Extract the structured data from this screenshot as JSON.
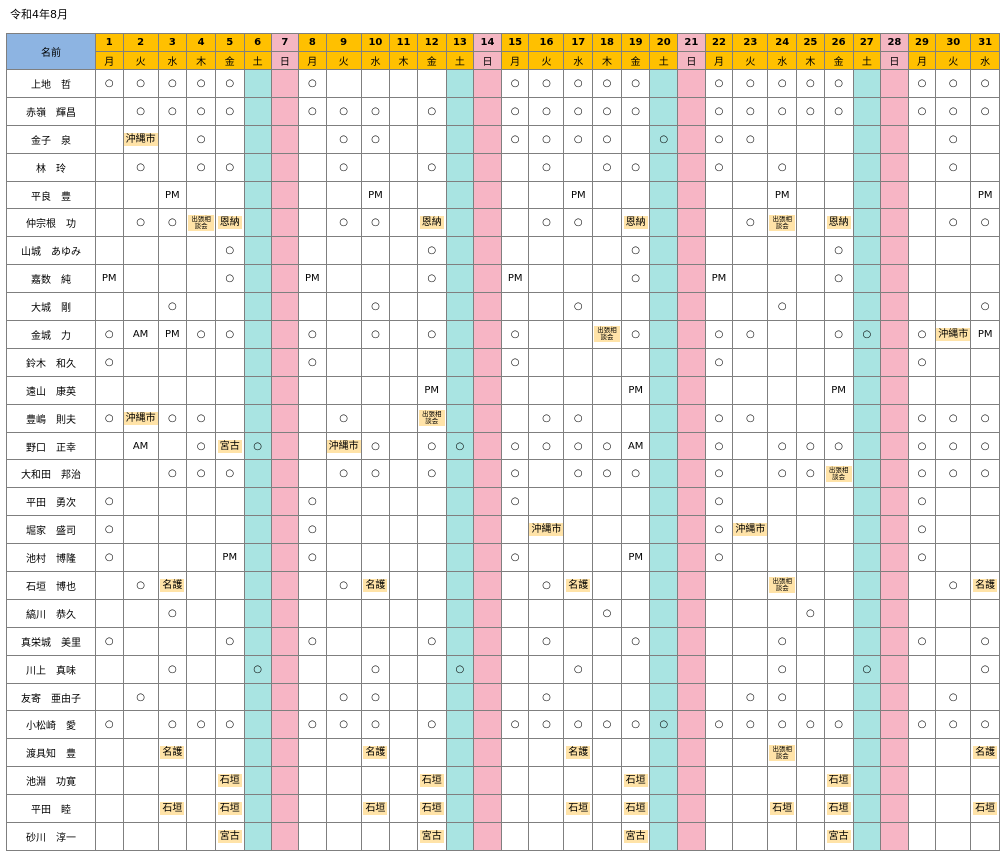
{
  "caption": "令和4年8月",
  "header": {
    "name_label": "名前",
    "days": [
      "1",
      "2",
      "3",
      "4",
      "5",
      "6",
      "7",
      "8",
      "9",
      "10",
      "11",
      "12",
      "13",
      "14",
      "15",
      "16",
      "17",
      "18",
      "19",
      "20",
      "21",
      "22",
      "23",
      "24",
      "25",
      "26",
      "27",
      "28",
      "29",
      "30",
      "31"
    ],
    "weekdays": [
      "月",
      "火",
      "水",
      "木",
      "金",
      "土",
      "日",
      "月",
      "火",
      "水",
      "木",
      "金",
      "土",
      "日",
      "月",
      "火",
      "水",
      "木",
      "金",
      "土",
      "日",
      "月",
      "火",
      "水",
      "木",
      "金",
      "土",
      "日",
      "月",
      "火",
      "水"
    ]
  },
  "rows": [
    {
      "name": "上地　哲",
      "cells": [
        "○",
        "○",
        "○",
        "○",
        "○",
        "",
        "",
        "○",
        "",
        "",
        "",
        "",
        "",
        "",
        "○",
        "○",
        "○",
        "○",
        "○",
        "",
        "",
        "○",
        "○",
        "○",
        "○",
        "○",
        "",
        "",
        "○",
        "○",
        "○"
      ]
    },
    {
      "name": "赤嶺　輝昌",
      "cells": [
        "",
        "○",
        "○",
        "○",
        "○",
        "",
        "",
        "○",
        "○",
        "○",
        "",
        "○",
        "",
        "",
        "○",
        "○",
        "○",
        "○",
        "○",
        "",
        "",
        "○",
        "○",
        "○",
        "○",
        "○",
        "",
        "",
        "○",
        "○",
        "○"
      ]
    },
    {
      "name": "金子　泉",
      "cells": [
        "",
        "沖縄市",
        "",
        "○",
        "",
        "",
        "",
        "",
        "○",
        "○",
        "",
        "",
        "",
        "",
        "○",
        "○",
        "○",
        "○",
        "",
        "○",
        "",
        "○",
        "○",
        "",
        "",
        "",
        "",
        "",
        "",
        "○",
        ""
      ]
    },
    {
      "name": "林　玲",
      "cells": [
        "",
        "○",
        "",
        "○",
        "○",
        "",
        "",
        "",
        "○",
        "",
        "",
        "○",
        "",
        "",
        "",
        "○",
        "",
        "○",
        "○",
        "",
        "",
        "○",
        "",
        "○",
        "",
        "",
        "",
        "",
        "",
        "○",
        ""
      ]
    },
    {
      "name": "平良　豊",
      "cells": [
        "",
        "",
        "PM",
        "",
        "",
        "",
        "",
        "",
        "",
        "PM",
        "",
        "",
        "",
        "",
        "",
        "",
        "PM",
        "",
        "",
        "",
        "",
        "",
        "",
        "PM",
        "",
        "",
        "",
        "",
        "",
        "",
        "PM"
      ]
    },
    {
      "name": "仲宗根　功",
      "cells": [
        "",
        "○",
        "○",
        "出張相談会",
        "恩納",
        "",
        "",
        "",
        "○",
        "○",
        "",
        "恩納",
        "",
        "",
        "",
        "○",
        "○",
        "",
        "恩納",
        "",
        "",
        "",
        "○",
        "出張相談会",
        "",
        "恩納",
        "",
        "",
        "",
        "○",
        "○"
      ]
    },
    {
      "name": "山城　あゆみ",
      "cells": [
        "",
        "",
        "",
        "",
        "○",
        "",
        "",
        "",
        "",
        "",
        "",
        "○",
        "",
        "",
        "",
        "",
        "",
        "",
        "○",
        "",
        "",
        "",
        "",
        "",
        "",
        "○",
        "",
        "",
        "",
        "",
        ""
      ]
    },
    {
      "name": "嘉数　純",
      "cells": [
        "PM",
        "",
        "",
        "",
        "○",
        "",
        "",
        "PM",
        "",
        "",
        "",
        "○",
        "",
        "",
        "PM",
        "",
        "",
        "",
        "○",
        "",
        "",
        "PM",
        "",
        "",
        "",
        "○",
        "",
        "",
        "",
        "",
        ""
      ]
    },
    {
      "name": "大城　剛",
      "cells": [
        "",
        "",
        "○",
        "",
        "",
        "",
        "",
        "",
        "",
        "○",
        "",
        "",
        "",
        "",
        "",
        "",
        "○",
        "",
        "",
        "",
        "",
        "",
        "",
        "○",
        "",
        "",
        "",
        "",
        "",
        "",
        "○"
      ]
    },
    {
      "name": "金城　力",
      "cells": [
        "○",
        "AM",
        "PM",
        "○",
        "○",
        "",
        "",
        "○",
        "",
        "○",
        "",
        "○",
        "",
        "",
        "○",
        "",
        "",
        "出張相談会",
        "○",
        "",
        "",
        "○",
        "○",
        "",
        "",
        "○",
        "○",
        "",
        "○",
        "沖縄市",
        "PM"
      ]
    },
    {
      "name": "鈴木　和久",
      "cells": [
        "○",
        "",
        "",
        "",
        "",
        "",
        "",
        "○",
        "",
        "",
        "",
        "",
        "",
        "",
        "○",
        "",
        "",
        "",
        "",
        "",
        "",
        "○",
        "",
        "",
        "",
        "",
        "",
        "",
        "○",
        "",
        ""
      ]
    },
    {
      "name": "遠山　康英",
      "cells": [
        "",
        "",
        "",
        "",
        "",
        "",
        "",
        "",
        "",
        "",
        "",
        "PM",
        "",
        "",
        "",
        "",
        "",
        "",
        "PM",
        "",
        "",
        "",
        "",
        "",
        "",
        "PM",
        "",
        "",
        "",
        "",
        ""
      ]
    },
    {
      "name": "豊嶋　則夫",
      "cells": [
        "○",
        "沖縄市",
        "○",
        "○",
        "",
        "",
        "",
        "",
        "○",
        "",
        "",
        "出張相談会",
        "",
        "",
        "",
        "○",
        "○",
        "",
        "",
        "",
        "",
        "○",
        "○",
        "",
        "",
        "",
        "",
        "",
        "○",
        "○",
        "○"
      ]
    },
    {
      "name": "野口　正幸",
      "cells": [
        "",
        "AM",
        "",
        "○",
        "宮古",
        "○",
        "",
        "",
        "沖縄市",
        "○",
        "",
        "○",
        "○",
        "",
        "○",
        "○",
        "○",
        "○",
        "AM",
        "",
        "",
        "○",
        "",
        "○",
        "○",
        "○",
        "",
        "",
        "○",
        "○",
        "○"
      ]
    },
    {
      "name": "大和田　邦治",
      "cells": [
        "",
        "",
        "○",
        "○",
        "○",
        "",
        "",
        "",
        "○",
        "○",
        "",
        "○",
        "",
        "",
        "○",
        "",
        "○",
        "○",
        "○",
        "",
        "",
        "○",
        "",
        "○",
        "○",
        "出張相談会",
        "",
        "",
        "○",
        "○",
        "○"
      ]
    },
    {
      "name": "平田　勇次",
      "cells": [
        "○",
        "",
        "",
        "",
        "",
        "",
        "",
        "○",
        "",
        "",
        "",
        "",
        "",
        "",
        "○",
        "",
        "",
        "",
        "",
        "",
        "",
        "○",
        "",
        "",
        "",
        "",
        "",
        "",
        "○",
        "",
        ""
      ]
    },
    {
      "name": "堀家　盛司",
      "cells": [
        "○",
        "",
        "",
        "",
        "",
        "",
        "",
        "○",
        "",
        "",
        "",
        "",
        "",
        "",
        "",
        "沖縄市",
        "",
        "",
        "",
        "",
        "",
        "○",
        "沖縄市",
        "",
        "",
        "",
        "",
        "",
        "○",
        "",
        ""
      ]
    },
    {
      "name": "池村　博隆",
      "cells": [
        "○",
        "",
        "",
        "",
        "PM",
        "",
        "",
        "○",
        "",
        "",
        "",
        "",
        "",
        "",
        "○",
        "",
        "",
        "",
        "PM",
        "",
        "",
        "○",
        "",
        "",
        "",
        "",
        "",
        "",
        "○",
        "",
        ""
      ]
    },
    {
      "name": "石垣　博也",
      "cells": [
        "",
        "○",
        "名護",
        "",
        "",
        "",
        "",
        "",
        "○",
        "名護",
        "",
        "",
        "",
        "",
        "",
        "○",
        "名護",
        "",
        "",
        "",
        "",
        "",
        "",
        "出張相談会",
        "",
        "",
        "",
        "",
        "",
        "○",
        "名護"
      ]
    },
    {
      "name": "縞川　恭久",
      "cells": [
        "",
        "",
        "○",
        "",
        "",
        "",
        "",
        "",
        "",
        "",
        "",
        "",
        "",
        "",
        "",
        "",
        "",
        "○",
        "",
        "",
        "",
        "",
        "",
        "",
        "○",
        "",
        "",
        "",
        "",
        "",
        ""
      ]
    },
    {
      "name": "真栄城　美里",
      "cells": [
        "○",
        "",
        "",
        "",
        "○",
        "",
        "",
        "○",
        "",
        "",
        "",
        "○",
        "",
        "",
        "",
        "○",
        "",
        "",
        "○",
        "",
        "",
        "",
        "",
        "○",
        "",
        "",
        "",
        "",
        "○",
        "",
        "○"
      ]
    },
    {
      "name": "川上　真味",
      "cells": [
        "",
        "",
        "○",
        "",
        "",
        "○",
        "",
        "",
        "",
        "○",
        "",
        "",
        "○",
        "",
        "",
        "",
        "○",
        "",
        "",
        "",
        "",
        "",
        "",
        "○",
        "",
        "",
        "○",
        "",
        "",
        "",
        "○"
      ]
    },
    {
      "name": "友寄　亜由子",
      "cells": [
        "",
        "○",
        "",
        "",
        "",
        "",
        "",
        "",
        "○",
        "○",
        "",
        "",
        "",
        "",
        "",
        "○",
        "",
        "",
        "",
        "",
        "",
        "",
        "○",
        "○",
        "",
        "",
        "",
        "",
        "",
        "○",
        ""
      ]
    },
    {
      "name": "小松崎　愛",
      "cells": [
        "○",
        "",
        "○",
        "○",
        "○",
        "",
        "",
        "○",
        "○",
        "○",
        "",
        "○",
        "",
        "",
        "○",
        "○",
        "○",
        "○",
        "○",
        "○",
        "",
        "○",
        "○",
        "○",
        "○",
        "○",
        "",
        "",
        "○",
        "○",
        "○"
      ]
    },
    {
      "name": "渡具知　豊",
      "cells": [
        "",
        "",
        "名護",
        "",
        "",
        "",
        "",
        "",
        "",
        "名護",
        "",
        "",
        "",
        "",
        "",
        "",
        "名護",
        "",
        "",
        "",
        "",
        "",
        "",
        "出張相談会",
        "",
        "",
        "",
        "",
        "",
        "",
        "名護"
      ]
    },
    {
      "name": "池淵　功寛",
      "cells": [
        "",
        "",
        "",
        "",
        "石垣",
        "",
        "",
        "",
        "",
        "",
        "",
        "石垣",
        "",
        "",
        "",
        "",
        "",
        "",
        "石垣",
        "",
        "",
        "",
        "",
        "",
        "",
        "石垣",
        "",
        "",
        "",
        "",
        ""
      ]
    },
    {
      "name": "平田　睦",
      "cells": [
        "",
        "",
        "石垣",
        "",
        "石垣",
        "",
        "",
        "",
        "",
        "石垣",
        "",
        "石垣",
        "",
        "",
        "",
        "",
        "石垣",
        "",
        "石垣",
        "",
        "",
        "",
        "",
        "石垣",
        "",
        "石垣",
        "",
        "",
        "",
        "",
        "石垣"
      ]
    },
    {
      "name": "砂川　淳一",
      "cells": [
        "",
        "",
        "",
        "",
        "宮古",
        "",
        "",
        "",
        "",
        "",
        "",
        "宮古",
        "",
        "",
        "",
        "",
        "",
        "",
        "宮古",
        "",
        "",
        "",
        "",
        "",
        "",
        "宮古",
        "",
        "",
        "",
        "",
        ""
      ]
    }
  ],
  "colors": {
    "header_name": "#8db4e2",
    "header_day": "#ffc000",
    "saturday": "#a9e4e2",
    "sunday": "#f7b5c5",
    "chip": "#ffe3a8"
  }
}
